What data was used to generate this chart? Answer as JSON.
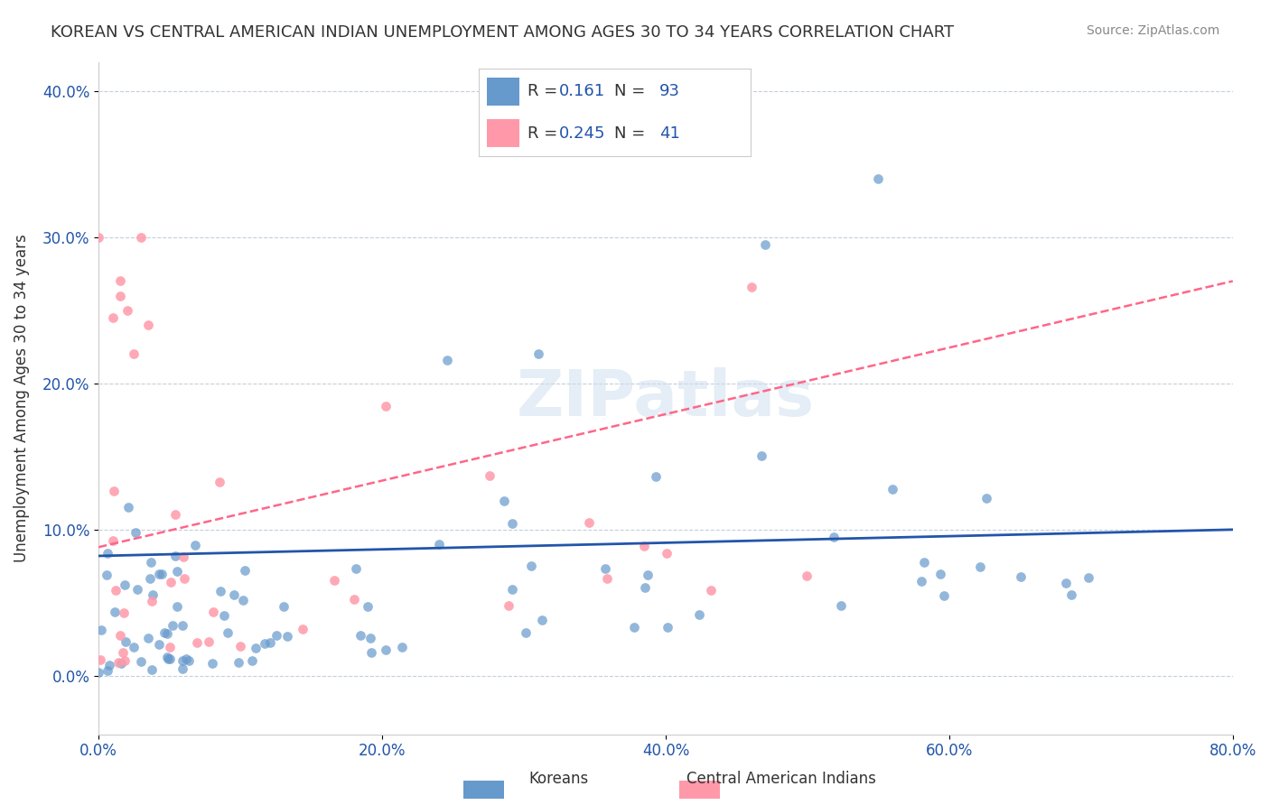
{
  "title": "KOREAN VS CENTRAL AMERICAN INDIAN UNEMPLOYMENT AMONG AGES 30 TO 34 YEARS CORRELATION CHART",
  "source": "Source: ZipAtlas.com",
  "ylabel": "Unemployment Among Ages 30 to 34 years",
  "xlim": [
    0.0,
    0.8
  ],
  "ylim": [
    -0.04,
    0.42
  ],
  "korean_R": 0.161,
  "korean_N": 93,
  "central_R": 0.245,
  "central_N": 41,
  "korean_color": "#6699CC",
  "central_color": "#FF99AA",
  "korean_line_color": "#2255AA",
  "central_line_color": "#FF6688",
  "watermark_color": "#CCDDEE",
  "legend_label_korean": "Koreans",
  "legend_label_central": "Central American Indians",
  "korean_trend_y": [
    0.082,
    0.1
  ],
  "central_trend_y": [
    0.088,
    0.27
  ]
}
